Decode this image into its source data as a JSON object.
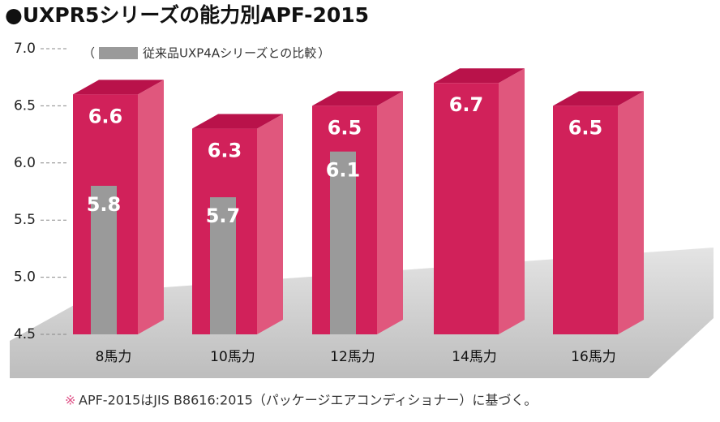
{
  "chart_data": {
    "type": "bar3d",
    "title": "●UXPR5シリーズの能力別APF-2015",
    "legend_open": "（",
    "legend_close": "）",
    "categories": [
      "8馬力",
      "10馬力",
      "12馬力",
      "14馬力",
      "16馬力"
    ],
    "series": [
      {
        "color": "#d1215a",
        "values": [
          6.6,
          6.3,
          6.5,
          6.7,
          6.5
        ]
      },
      {
        "name": "従来品UXP4Aシリーズとの比較",
        "color": "#9a9a9a",
        "values": [
          5.8,
          5.7,
          6.1,
          null,
          null
        ]
      }
    ],
    "ylim": [
      4.5,
      7.0
    ],
    "yticks": [
      4.5,
      {
        "value": 5,
        "label": "5.0"
      },
      5.5,
      {
        "value": 6,
        "label": "6.0"
      },
      6.5,
      {
        "value": 7,
        "label": "7.0"
      }
    ],
    "grid": true,
    "footnote_mark": "※",
    "footnote": "APF-2015はJIS B8616:2015（パッケージエアコンディショナー）に基づく。"
  }
}
